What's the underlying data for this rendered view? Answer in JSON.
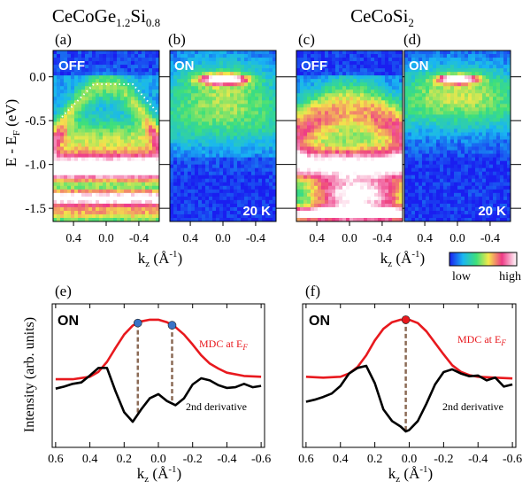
{
  "chart_data": [
    {
      "type": "heatmap",
      "id": "a",
      "compound_base": "CeCoGe",
      "compound_sub1": "1.2",
      "compound_mid": "Si",
      "compound_sub2": "0.8",
      "panel_label": "(a)",
      "mode": "OFF",
      "ylabel": "E - E",
      "ylabel_sub": "F",
      "ylabel_unit": "(eV)",
      "yticks": [
        "0.0",
        "-0.5",
        "-1.0",
        "-1.5"
      ],
      "ytick_values": [
        0.0,
        -0.5,
        -1.0,
        -1.5
      ],
      "ylim": [
        -1.65,
        0.3
      ],
      "xticks": [
        "0.4",
        "0.0",
        "-0.4"
      ],
      "xtick_values": [
        0.4,
        0.0,
        -0.4
      ],
      "xlim": [
        0.65,
        -0.65
      ]
    },
    {
      "type": "heatmap",
      "id": "b",
      "panel_label": "(b)",
      "mode": "ON",
      "temperature": "20 K",
      "xticks": [
        "0.4",
        "0.0",
        "-0.4"
      ],
      "xtick_values": [
        0.4,
        0.0,
        -0.4
      ],
      "xlim": [
        0.65,
        -0.65
      ]
    },
    {
      "type": "heatmap",
      "id": "c",
      "compound_base": "CeCoSi",
      "compound_sub1": "2",
      "panel_label": "(c)",
      "mode": "OFF",
      "xticks": [
        "0.4",
        "0.0",
        "-0.4"
      ],
      "xtick_values": [
        0.4,
        0.0,
        -0.4
      ],
      "xlim": [
        0.65,
        -0.65
      ]
    },
    {
      "type": "heatmap",
      "id": "d",
      "panel_label": "(d)",
      "mode": "ON",
      "temperature": "20 K",
      "xticks": [
        "0.4",
        "0.0",
        "-0.4"
      ],
      "xtick_values": [
        0.4,
        0.0,
        -0.4
      ],
      "xlim": [
        0.65,
        -0.65
      ]
    },
    {
      "type": "line",
      "id": "e",
      "panel_label": "(e)",
      "mode": "ON",
      "xlim": [
        0.62,
        -0.62
      ],
      "xticks": [
        "0.6",
        "0.4",
        "0.2",
        "0.0",
        "-0.2",
        "-0.4",
        "-0.6"
      ],
      "xtick_values": [
        0.6,
        0.4,
        0.2,
        0.0,
        -0.2,
        -0.4,
        -0.6
      ],
      "series": [
        {
          "name": "MDC at E",
          "name_sub": "F",
          "color": "#e8191e",
          "x": [
            0.6,
            0.5,
            0.4,
            0.35,
            0.3,
            0.25,
            0.2,
            0.15,
            0.1,
            0.05,
            0.0,
            -0.05,
            -0.1,
            -0.15,
            -0.2,
            -0.25,
            -0.3,
            -0.35,
            -0.4,
            -0.5,
            -0.6
          ],
          "y": [
            0.27,
            0.27,
            0.3,
            0.36,
            0.48,
            0.65,
            0.81,
            0.92,
            0.97,
            0.99,
            0.99,
            0.96,
            0.9,
            0.81,
            0.69,
            0.56,
            0.46,
            0.4,
            0.35,
            0.31,
            0.3
          ]
        },
        {
          "name": "2nd derivative",
          "color": "#000000",
          "x": [
            0.6,
            0.55,
            0.5,
            0.45,
            0.4,
            0.35,
            0.3,
            0.25,
            0.2,
            0.15,
            0.1,
            0.05,
            0.0,
            -0.05,
            -0.1,
            -0.15,
            -0.2,
            -0.25,
            -0.3,
            -0.35,
            -0.4,
            -0.45,
            -0.5,
            -0.55,
            -0.6
          ],
          "y": [
            -0.28,
            -0.25,
            -0.21,
            -0.19,
            -0.09,
            0.02,
            0.02,
            -0.32,
            -0.62,
            -0.76,
            -0.58,
            -0.42,
            -0.36,
            -0.46,
            -0.52,
            -0.42,
            -0.22,
            -0.13,
            -0.16,
            -0.23,
            -0.27,
            -0.26,
            -0.21,
            -0.26,
            -0.24
          ]
        }
      ],
      "markers": [
        0.12,
        -0.08
      ],
      "ylabel": "Intensity (arb. units)"
    },
    {
      "type": "line",
      "id": "f",
      "panel_label": "(f)",
      "mode": "ON",
      "xlim": [
        0.62,
        -0.62
      ],
      "xticks": [
        "0.6",
        "0.4",
        "0.2",
        "0.0",
        "-0.2",
        "-0.4",
        "-0.6"
      ],
      "xtick_values": [
        0.6,
        0.4,
        0.2,
        0.0,
        -0.2,
        -0.4,
        -0.6
      ],
      "series": [
        {
          "name": "MDC at E",
          "name_sub": "F",
          "color": "#e8191e",
          "x": [
            0.6,
            0.5,
            0.4,
            0.35,
            0.3,
            0.25,
            0.2,
            0.15,
            0.1,
            0.05,
            0.0,
            -0.05,
            -0.1,
            -0.15,
            -0.2,
            -0.25,
            -0.3,
            -0.35,
            -0.4,
            -0.5,
            -0.6
          ],
          "y": [
            0.3,
            0.29,
            0.3,
            0.34,
            0.42,
            0.56,
            0.74,
            0.88,
            0.96,
            0.99,
            0.99,
            0.95,
            0.85,
            0.71,
            0.57,
            0.44,
            0.36,
            0.32,
            0.3,
            0.29,
            0.28
          ]
        },
        {
          "name": "2nd derivative",
          "color": "#000000",
          "x": [
            0.6,
            0.55,
            0.5,
            0.45,
            0.4,
            0.35,
            0.3,
            0.25,
            0.2,
            0.15,
            0.1,
            0.05,
            0.02,
            0.0,
            -0.05,
            -0.1,
            -0.15,
            -0.2,
            -0.25,
            -0.3,
            -0.35,
            -0.4,
            -0.45,
            -0.5,
            -0.55,
            -0.6
          ],
          "y": [
            -0.47,
            -0.44,
            -0.4,
            -0.35,
            -0.24,
            -0.06,
            0.02,
            0.05,
            -0.2,
            -0.58,
            -0.75,
            -0.83,
            -0.9,
            -0.88,
            -0.75,
            -0.5,
            -0.22,
            -0.04,
            0.0,
            -0.06,
            -0.1,
            -0.09,
            -0.16,
            -0.12,
            -0.25,
            -0.22
          ]
        }
      ],
      "markers": [
        0.02
      ]
    }
  ],
  "shared": {
    "xlabel_upper": "k",
    "xlabel_lower": "k",
    "xlabel_sub": "z",
    "xlabel_unit": "(Å",
    "xlabel_exp": "-1",
    "xlabel_close": ")",
    "colorbar_low": "low",
    "colorbar_high": "high"
  },
  "colors": {
    "mdc": "#e8191e",
    "derivative": "#000000",
    "marker_blue": "#3a73c6",
    "marker_red": "#e8191e",
    "guide": "#8b6a55"
  }
}
